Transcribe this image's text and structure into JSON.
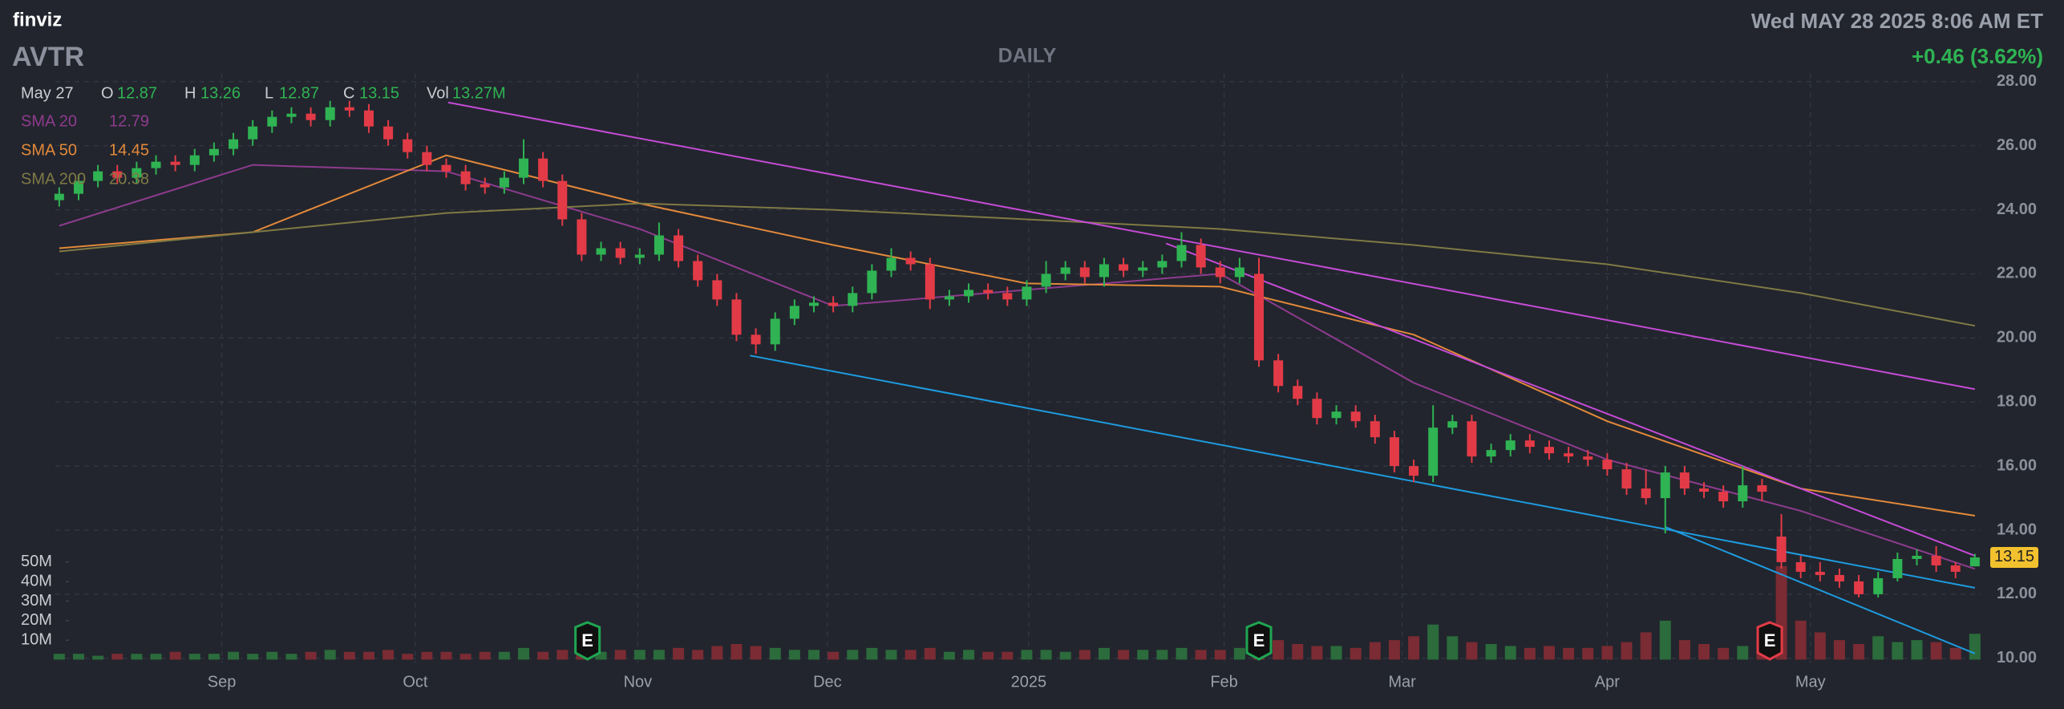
{
  "header": {
    "logo": "finviz",
    "ticker": "AVTR",
    "timeframe": "DAILY",
    "datetime": "Wed MAY 28 2025 8:06 AM ET",
    "change": "+0.46 (3.62%)"
  },
  "chart_data": {
    "type": "candlestick",
    "legend": {
      "date": "May 27",
      "open": "O",
      "high": "H",
      "low": "L",
      "close": "C",
      "volume": "Vol",
      "volume_label": "13.27M"
    },
    "up_color": "#2fb353",
    "down_color": "#e23b47",
    "vol_up_color": "#2b6b3c",
    "vol_down_color": "#7a2b33",
    "open": [
      24.3,
      24.5,
      24.9,
      25.2,
      25.0,
      25.3,
      25.5,
      25.4,
      25.7,
      25.9,
      26.2,
      26.6,
      26.9,
      27.0,
      26.8,
      27.2,
      27.1,
      26.6,
      26.2,
      25.8,
      25.4,
      25.2,
      24.8,
      24.7,
      25.0,
      25.6,
      24.9,
      23.7,
      22.6,
      22.8,
      22.5,
      22.6,
      23.2,
      22.4,
      21.8,
      21.2,
      20.1,
      19.8,
      20.6,
      21.0,
      21.1,
      21.0,
      21.4,
      22.1,
      22.5,
      22.3,
      21.2,
      21.3,
      21.5,
      21.4,
      21.2,
      21.6,
      22.0,
      22.2,
      21.9,
      22.3,
      22.1,
      22.2,
      22.4,
      22.9,
      22.2,
      21.9,
      22.0,
      19.3,
      18.5,
      18.1,
      17.5,
      17.7,
      17.4,
      16.9,
      16.0,
      15.7,
      17.2,
      17.4,
      16.3,
      16.5,
      16.8,
      16.6,
      16.4,
      16.3,
      16.2,
      15.9,
      15.3,
      15.0,
      15.8,
      15.3,
      15.2,
      14.9,
      15.4,
      13.8,
      13.0,
      12.7,
      12.6,
      12.4,
      12.0,
      12.5,
      13.1,
      13.2,
      12.9,
      12.87
    ],
    "high": [
      24.7,
      25.1,
      25.4,
      25.4,
      25.5,
      25.7,
      25.7,
      25.9,
      26.1,
      26.4,
      26.8,
      27.1,
      27.2,
      27.2,
      27.4,
      27.4,
      27.3,
      26.8,
      26.4,
      26.0,
      25.6,
      25.4,
      25.0,
      25.2,
      26.2,
      25.8,
      25.1,
      23.9,
      23.0,
      23.0,
      22.8,
      23.6,
      23.4,
      22.6,
      22.0,
      21.4,
      20.3,
      20.8,
      21.2,
      21.3,
      21.3,
      21.6,
      22.3,
      22.8,
      22.7,
      22.5,
      21.5,
      21.7,
      21.7,
      21.6,
      21.8,
      22.4,
      22.4,
      22.4,
      22.5,
      22.5,
      22.4,
      22.6,
      23.3,
      23.1,
      22.4,
      22.5,
      22.5,
      19.5,
      18.7,
      18.3,
      17.9,
      17.9,
      17.6,
      17.1,
      16.2,
      17.9,
      17.6,
      17.6,
      16.7,
      17.0,
      17.0,
      16.8,
      16.6,
      16.5,
      16.4,
      16.1,
      15.9,
      16.0,
      16.0,
      15.5,
      15.4,
      16.0,
      15.6,
      14.5,
      13.2,
      13.0,
      12.8,
      12.6,
      12.7,
      13.3,
      13.4,
      13.5,
      13.0,
      13.26
    ],
    "low": [
      24.1,
      24.3,
      24.7,
      24.8,
      24.8,
      25.1,
      25.2,
      25.2,
      25.5,
      25.7,
      26.0,
      26.4,
      26.7,
      26.6,
      26.6,
      26.9,
      26.4,
      26.0,
      25.6,
      25.2,
      25.0,
      24.6,
      24.5,
      24.5,
      24.8,
      24.7,
      23.5,
      22.4,
      22.4,
      22.3,
      22.3,
      22.4,
      22.2,
      21.6,
      21.0,
      19.9,
      19.5,
      19.6,
      20.4,
      20.8,
      20.8,
      20.8,
      21.2,
      21.9,
      22.1,
      20.9,
      21.0,
      21.1,
      21.2,
      21.0,
      21.0,
      21.4,
      21.8,
      21.7,
      21.6,
      21.9,
      21.9,
      22.0,
      22.2,
      22.0,
      21.7,
      21.7,
      19.1,
      18.3,
      17.9,
      17.3,
      17.3,
      17.2,
      16.7,
      15.8,
      15.5,
      15.5,
      17.0,
      16.1,
      16.1,
      16.3,
      16.4,
      16.2,
      16.1,
      16.0,
      15.7,
      15.1,
      14.8,
      13.9,
      15.1,
      15.0,
      14.7,
      14.7,
      14.9,
      12.8,
      12.5,
      12.4,
      12.2,
      11.9,
      11.9,
      12.4,
      12.9,
      12.7,
      12.5,
      12.87
    ],
    "close": [
      24.5,
      24.9,
      25.2,
      25.0,
      25.3,
      25.5,
      25.4,
      25.7,
      25.9,
      26.2,
      26.6,
      26.9,
      27.0,
      26.8,
      27.2,
      27.1,
      26.6,
      26.2,
      25.8,
      25.4,
      25.2,
      24.8,
      24.7,
      25.0,
      25.6,
      24.9,
      23.7,
      22.6,
      22.8,
      22.5,
      22.6,
      23.2,
      22.4,
      21.8,
      21.2,
      20.1,
      19.8,
      20.6,
      21.0,
      21.1,
      21.0,
      21.4,
      22.1,
      22.5,
      22.3,
      21.2,
      21.3,
      21.5,
      21.4,
      21.2,
      21.6,
      22.0,
      22.2,
      21.9,
      22.3,
      22.1,
      22.2,
      22.4,
      22.9,
      22.2,
      21.9,
      22.2,
      19.3,
      18.5,
      18.1,
      17.5,
      17.7,
      17.4,
      16.9,
      16.0,
      15.7,
      17.2,
      17.4,
      16.3,
      16.5,
      16.8,
      16.6,
      16.4,
      16.3,
      16.2,
      15.9,
      15.3,
      15.0,
      15.8,
      15.3,
      15.2,
      14.9,
      15.4,
      15.2,
      13.0,
      12.7,
      12.6,
      12.4,
      12.0,
      12.5,
      13.1,
      13.2,
      12.9,
      12.7,
      13.15
    ],
    "volume": [
      3,
      3,
      2,
      3,
      3,
      3,
      4,
      3,
      3,
      4,
      3,
      4,
      3,
      4,
      5,
      4,
      4,
      5,
      3,
      4,
      4,
      3,
      4,
      4,
      6,
      4,
      5,
      7,
      4,
      5,
      5,
      5,
      6,
      5,
      7,
      8,
      7,
      6,
      5,
      5,
      4,
      5,
      6,
      5,
      5,
      6,
      4,
      5,
      4,
      4,
      5,
      5,
      4,
      5,
      6,
      5,
      5,
      5,
      6,
      5,
      5,
      6,
      14,
      10,
      8,
      7,
      7,
      6,
      9,
      10,
      12,
      18,
      12,
      9,
      8,
      7,
      6,
      7,
      6,
      6,
      7,
      9,
      14,
      20,
      10,
      8,
      6,
      7,
      9,
      48,
      20,
      14,
      10,
      8,
      12,
      9,
      10,
      9,
      6,
      13.27
    ],
    "ylim": [
      10,
      28
    ],
    "yticks": [
      {
        "value": 10,
        "label": "10.00"
      },
      {
        "value": 12,
        "label": "12.00"
      },
      {
        "value": 14,
        "label": "14.00"
      },
      {
        "value": 16,
        "label": "16.00"
      },
      {
        "value": 18,
        "label": "18.00"
      },
      {
        "value": 20,
        "label": "20.00"
      },
      {
        "value": 22,
        "label": "22.00"
      },
      {
        "value": 24,
        "label": "24.00"
      },
      {
        "value": 26,
        "label": "26.00"
      },
      {
        "value": 28,
        "label": "28.00"
      }
    ],
    "vlim": [
      0,
      50
    ],
    "vticks": [
      {
        "value": 10,
        "label": "10M"
      },
      {
        "value": 20,
        "label": "20M"
      },
      {
        "value": 30,
        "label": "30M"
      },
      {
        "value": 40,
        "label": "40M"
      },
      {
        "value": 50,
        "label": "50M"
      }
    ],
    "xticks": [
      {
        "value": 8.4,
        "label": "Sep"
      },
      {
        "value": 18.4,
        "label": "Oct"
      },
      {
        "value": 29.9,
        "label": "Nov"
      },
      {
        "value": 39.7,
        "label": "Dec"
      },
      {
        "value": 50.1,
        "label": "2025"
      },
      {
        "value": 60.2,
        "label": "Feb"
      },
      {
        "value": 69.4,
        "label": "Mar"
      },
      {
        "value": 80,
        "label": "Apr"
      },
      {
        "value": 90.5,
        "label": "May"
      }
    ],
    "grid": true,
    "sma": [
      {
        "name": "SMA 20",
        "color": "#8e3b8e",
        "x": [
          0,
          10,
          20,
          30,
          40,
          50,
          60,
          70,
          80,
          90,
          99
        ],
        "values": [
          23.5,
          25.4,
          25.2,
          23.4,
          21.0,
          21.5,
          22.0,
          18.6,
          16.2,
          14.6,
          12.79
        ]
      },
      {
        "name": "SMA 50",
        "color": "#e3893a",
        "x": [
          0,
          10,
          20,
          30,
          40,
          50,
          60,
          70,
          80,
          90,
          99
        ],
        "values": [
          22.8,
          23.3,
          25.7,
          24.2,
          22.9,
          21.7,
          21.6,
          20.1,
          17.4,
          15.3,
          14.45
        ]
      },
      {
        "name": "SMA 200",
        "color": "#7f7a45",
        "x": [
          0,
          10,
          20,
          30,
          40,
          50,
          60,
          70,
          80,
          90,
          99
        ],
        "values": [
          22.7,
          23.3,
          23.9,
          24.2,
          24.0,
          23.7,
          23.4,
          22.9,
          22.3,
          21.4,
          20.38
        ]
      }
    ],
    "trendlines": [
      {
        "color": "#c54bd6",
        "x": [
          20.1,
          99
        ],
        "values": [
          27.35,
          18.4
        ]
      },
      {
        "color": "#c54bd6",
        "x": [
          57.2,
          99
        ],
        "values": [
          22.95,
          13.2
        ]
      },
      {
        "color": "#1e9be0",
        "x": [
          35.7,
          99
        ],
        "values": [
          19.45,
          12.2
        ]
      },
      {
        "color": "#1e9be0",
        "x": [
          83,
          99
        ],
        "values": [
          14.1,
          10.15
        ]
      }
    ],
    "earnings": [
      {
        "x": 27.3,
        "label": "E",
        "color": "#1fa552"
      },
      {
        "x": 62,
        "label": "E",
        "color": "#1fa552"
      },
      {
        "x": 88.4,
        "label": "E",
        "color": "#e23b47"
      }
    ],
    "last_price_color": "#f2c12e"
  }
}
